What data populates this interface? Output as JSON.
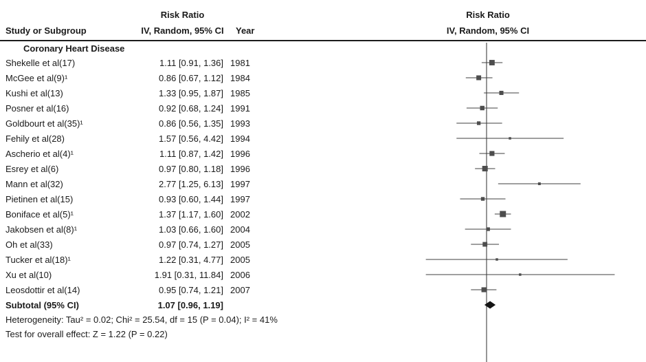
{
  "header": {
    "study_col": "Study or Subgroup",
    "effect_col_line1": "Risk Ratio",
    "effect_col_line2": "IV, Random, 95% CI",
    "year_col": "Year",
    "plot_col_line1": "Risk Ratio",
    "plot_col_line2": "IV, Random, 95% CI"
  },
  "chart_data": {
    "type": "forest",
    "effect_measure": "Risk Ratio",
    "model": "IV, Random, 95% CI",
    "subgroup": "Coronary Heart Disease",
    "x_scale": "log10",
    "axis_center": 1,
    "x_domain": [
      0.05,
      20
    ],
    "studies": [
      {
        "label": "Shekelle et al(17)",
        "estimate_label": "1.11 [0.91, 1.36]",
        "rr": 1.11,
        "ci_low": 0.91,
        "ci_high": 1.36,
        "year": "1981"
      },
      {
        "label": "McGee et al(9)¹",
        "estimate_label": "0.86 [0.67, 1.12]",
        "rr": 0.86,
        "ci_low": 0.67,
        "ci_high": 1.12,
        "year": "1984"
      },
      {
        "label": "Kushi et al(13)",
        "estimate_label": "1.33 [0.95, 1.87]",
        "rr": 1.33,
        "ci_low": 0.95,
        "ci_high": 1.87,
        "year": "1985"
      },
      {
        "label": "Posner et al(16)",
        "estimate_label": "0.92 [0.68, 1.24]",
        "rr": 0.92,
        "ci_low": 0.68,
        "ci_high": 1.24,
        "year": "1991"
      },
      {
        "label": "Goldbourt et al(35)¹",
        "estimate_label": "0.86 [0.56, 1.35]",
        "rr": 0.86,
        "ci_low": 0.56,
        "ci_high": 1.35,
        "year": "1993"
      },
      {
        "label": "Fehily et al(28)",
        "estimate_label": "1.57 [0.56, 4.42]",
        "rr": 1.57,
        "ci_low": 0.56,
        "ci_high": 4.42,
        "year": "1994"
      },
      {
        "label": "Ascherio et al(4)¹",
        "estimate_label": "1.11 [0.87, 1.42]",
        "rr": 1.11,
        "ci_low": 0.87,
        "ci_high": 1.42,
        "year": "1996"
      },
      {
        "label": "Esrey et al(6)",
        "estimate_label": "0.97 [0.80, 1.18]",
        "rr": 0.97,
        "ci_low": 0.8,
        "ci_high": 1.18,
        "year": "1996"
      },
      {
        "label": "Mann et al(32)",
        "estimate_label": "2.77 [1.25, 6.13]",
        "rr": 2.77,
        "ci_low": 1.25,
        "ci_high": 6.13,
        "year": "1997"
      },
      {
        "label": "Pietinen et al(15)",
        "estimate_label": "0.93 [0.60, 1.44]",
        "rr": 0.93,
        "ci_low": 0.6,
        "ci_high": 1.44,
        "year": "1997"
      },
      {
        "label": "Boniface et al(5)¹",
        "estimate_label": "1.37 [1.17, 1.60]",
        "rr": 1.37,
        "ci_low": 1.17,
        "ci_high": 1.6,
        "year": "2002"
      },
      {
        "label": "Jakobsen et al(8)¹",
        "estimate_label": "1.03 [0.66, 1.60]",
        "rr": 1.03,
        "ci_low": 0.66,
        "ci_high": 1.6,
        "year": "2004"
      },
      {
        "label": "Oh et al(33)",
        "estimate_label": "0.97 [0.74, 1.27]",
        "rr": 0.97,
        "ci_low": 0.74,
        "ci_high": 1.27,
        "year": "2005"
      },
      {
        "label": "Tucker et al(18)¹",
        "estimate_label": "1.22 [0.31, 4.77]",
        "rr": 1.22,
        "ci_low": 0.31,
        "ci_high": 4.77,
        "year": "2005"
      },
      {
        "label": "Xu et al(10)",
        "estimate_label": "1.91 [0.31, 11.84]",
        "rr": 1.91,
        "ci_low": 0.31,
        "ci_high": 11.84,
        "year": "2006"
      },
      {
        "label": "Leosdottir et al(14)",
        "estimate_label": "0.95 [0.74, 1.21]",
        "rr": 0.95,
        "ci_low": 0.74,
        "ci_high": 1.21,
        "year": "2007"
      }
    ],
    "subtotal": {
      "label": "Subtotal (95% CI)",
      "estimate_label": "1.07 [0.96, 1.19]",
      "rr": 1.07,
      "ci_low": 0.96,
      "ci_high": 1.19
    },
    "heterogeneity": "Heterogeneity: Tau² = 0.02; Chi² = 25.54, df = 15 (P = 0.04); I² = 41%",
    "overall_effect": "Test for overall effect: Z = 1.22 (P = 0.22)",
    "colors": {
      "axis_line": "#4f4f4f",
      "ci_line": "#3f3f3f",
      "marker_fill": "#4d4d4d",
      "diamond_fill": "#141414"
    }
  }
}
